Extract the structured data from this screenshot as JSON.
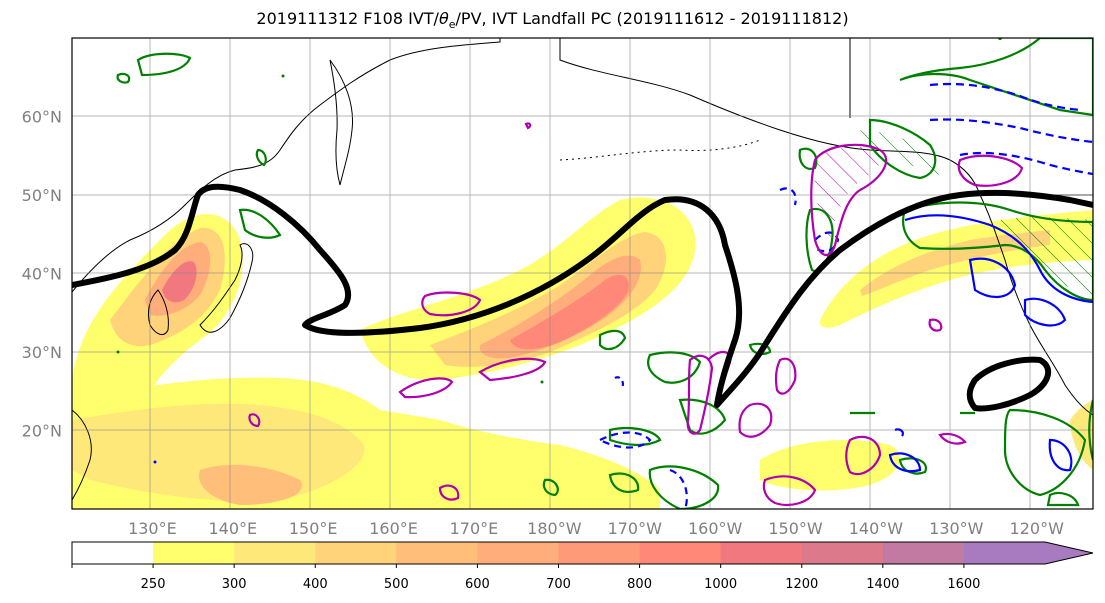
{
  "title": {
    "prefix": "2019111312 F108 IVT/",
    "theta": "θ",
    "theta_sub": "e",
    "suffix": "/PV, IVT Landfall PC (2019111612 - 2019111812)"
  },
  "map": {
    "lat_labels": [
      "60°N",
      "50°N",
      "40°N",
      "30°N",
      "20°N"
    ],
    "lon_labels": [
      "130°E",
      "140°E",
      "150°E",
      "160°E",
      "170°E",
      "180°W",
      "170°W",
      "160°W",
      "150°W",
      "140°W",
      "130°W",
      "120°W"
    ],
    "lat_values": [
      60,
      50,
      40,
      30,
      20
    ],
    "lon_values": [
      130,
      140,
      150,
      160,
      170,
      180,
      190,
      200,
      210,
      220,
      230,
      240
    ],
    "extent": {
      "lon_min": 120,
      "lon_max": 247,
      "lat_min": 10,
      "lat_max": 70
    },
    "gridlines": true,
    "contour_colors": {
      "theta_e": "#000000",
      "pv": "#b000b0",
      "ivt_pos": "#008000",
      "ivt_neg": "#0000ff"
    }
  },
  "colorbar": {
    "levels": [
      "250",
      "300",
      "400",
      "500",
      "600",
      "700",
      "800",
      "1000",
      "1200",
      "1400",
      "1600"
    ],
    "colors": [
      "#ffff6e",
      "#ffe87a",
      "#ffd37a",
      "#ffbf7a",
      "#ffad7a",
      "#ff9a78",
      "#ff8878",
      "#f0787e",
      "#dc7a8c",
      "#c27aa2",
      "#a87ac0"
    ],
    "extend": "max"
  }
}
